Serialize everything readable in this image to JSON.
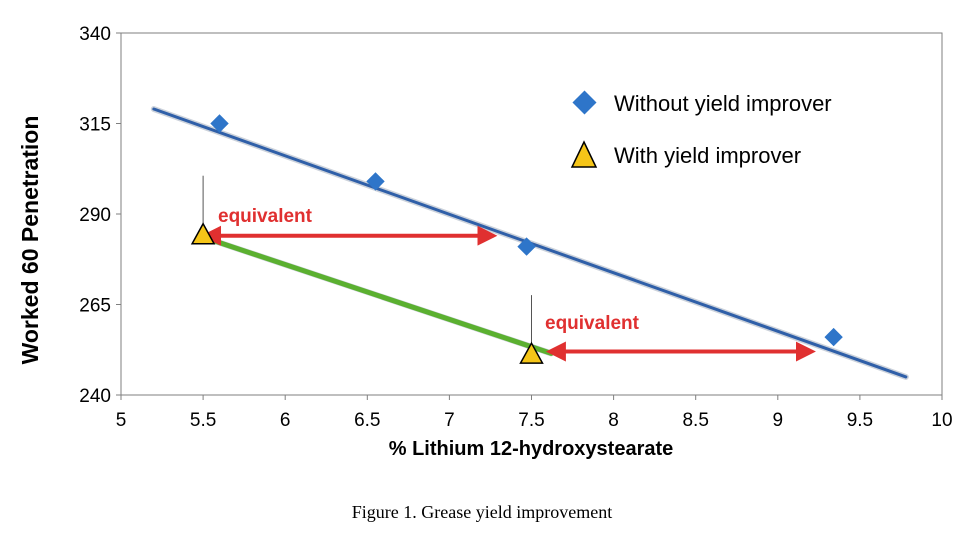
{
  "chart_data": {
    "type": "scatter",
    "xlabel": "% Lithium 12-hydroxystearate",
    "ylabel": "Worked 60  Penetration",
    "xlim": [
      5,
      10
    ],
    "ylim": [
      240,
      340
    ],
    "x_ticks": [
      "5",
      "5.5",
      "6",
      "6.5",
      "7",
      "7.5",
      "8",
      "8.5",
      "9",
      "9.5",
      "10"
    ],
    "y_ticks": [
      "240",
      "265",
      "290",
      "315",
      "340"
    ],
    "grid": false,
    "legend_position": "top-right",
    "series": [
      {
        "name": "Without yield improver",
        "marker": "diamond",
        "color": "#2e75c9",
        "x": [
          5.6,
          6.55,
          7.47,
          9.34
        ],
        "y": [
          315,
          299,
          281,
          256
        ],
        "trendline": {
          "x": [
            5.2,
            9.78
          ],
          "y": [
            319,
            245
          ],
          "color": "#2f5fa8"
        }
      },
      {
        "name": "With yield improver",
        "marker": "triangle",
        "color": "#f5c518",
        "x": [
          5.5,
          7.5
        ],
        "y": [
          284,
          251
        ],
        "trendline": {
          "x": [
            5.5,
            7.62
          ],
          "y": [
            283.6,
            251.5
          ],
          "color": "#5bb030"
        }
      }
    ],
    "annotations": [
      {
        "text": "equivalent",
        "arrow_x": [
          5.5,
          7.28
        ],
        "arrow_y": 284,
        "color": "#e03030"
      },
      {
        "text": "equivalent",
        "arrow_x": [
          7.6,
          9.22
        ],
        "arrow_y": 252,
        "color": "#e03030"
      }
    ]
  },
  "caption": "Figure 1. Grease yield improvement"
}
